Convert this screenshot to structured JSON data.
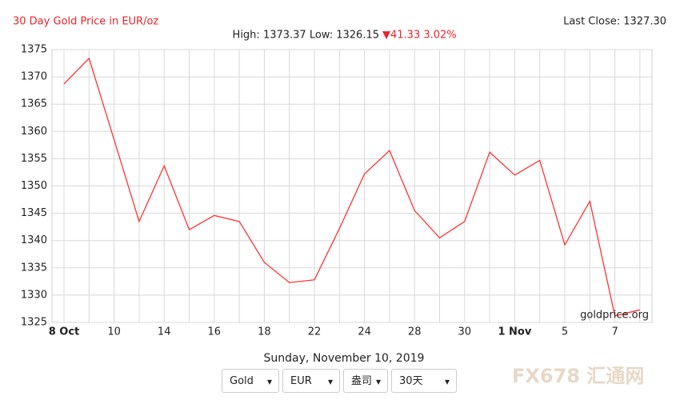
{
  "chart_data": {
    "type": "line",
    "title": "30 Day Gold Price in EUR/oz",
    "last_close": "Last Close: 1327.30",
    "stats": "High: 1373.37 Low: 1326.15",
    "change": "▼41.33 3.02%",
    "watermark": "goldprice.org",
    "categories": [
      "8 Oct",
      null,
      "10",
      null,
      "14",
      null,
      "16",
      null,
      "18",
      null,
      "22",
      null,
      "24",
      null,
      "28",
      null,
      "30",
      null,
      "1 Nov",
      null,
      "5",
      null,
      "7",
      null
    ],
    "series": [
      {
        "name": "Gold",
        "color": "#ff3333",
        "values": [
          1368.7,
          1373.4,
          1358.5,
          1343.5,
          1353.7,
          1342.0,
          1344.6,
          1343.5,
          1336.0,
          1332.3,
          1332.8,
          1342.2,
          1352.2,
          1356.5,
          1345.5,
          1340.5,
          1343.5,
          1356.2,
          1352.0,
          1354.7,
          1339.2,
          1347.2,
          1326.2,
          1327.3
        ]
      }
    ],
    "ylim": [
      1325,
      1375
    ],
    "yticks": [
      1325,
      1330,
      1335,
      1340,
      1345,
      1350,
      1355,
      1360,
      1365,
      1370,
      1375
    ],
    "grid": true
  },
  "date": "Sunday, November 10, 2019",
  "controls": [
    "Gold",
    "EUR",
    "盎司",
    "30天"
  ],
  "logo": {
    "mark": "FX678",
    "text": "汇通网"
  }
}
